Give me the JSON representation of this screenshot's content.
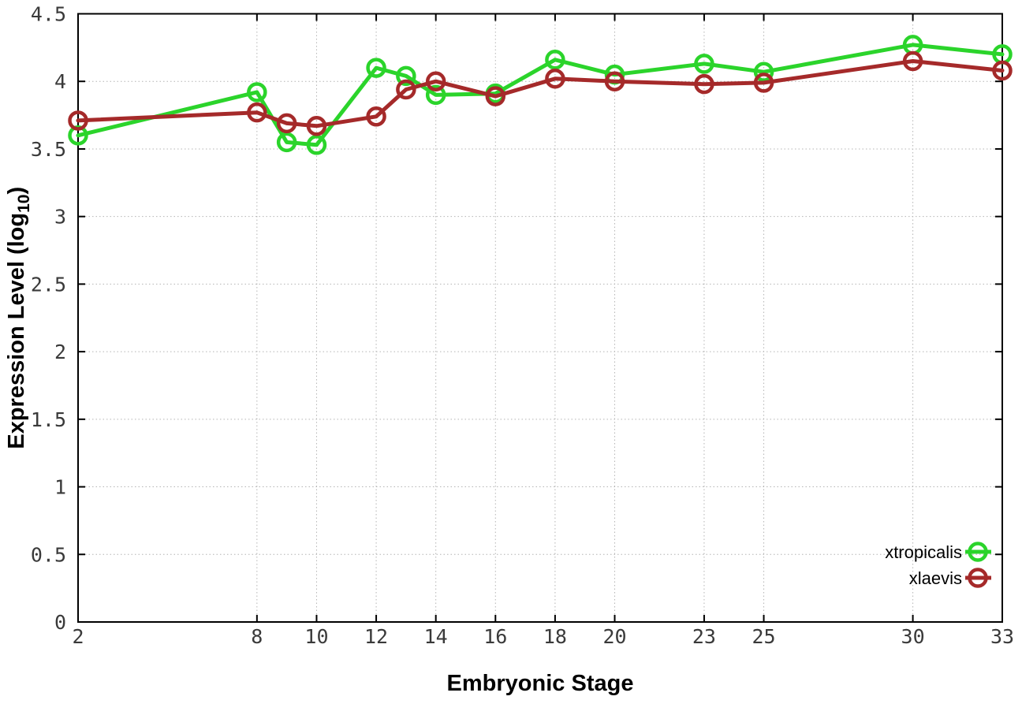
{
  "page": {
    "background": "#ffffff"
  },
  "chart_data": {
    "type": "line",
    "title": "",
    "xlabel": "Embryonic Stage",
    "ylabel": {
      "prefix": "Expression Level (log",
      "subscript": "10",
      "suffix": ")"
    },
    "xlim": [
      2,
      33
    ],
    "ylim": [
      0,
      4.5
    ],
    "x_ticks": [
      2,
      8,
      10,
      12,
      14,
      16,
      18,
      20,
      23,
      25,
      30,
      33
    ],
    "y_ticks": [
      0,
      0.5,
      1,
      1.5,
      2,
      2.5,
      3,
      3.5,
      4,
      4.5
    ],
    "grid": true,
    "legend_position": "inside-right-bottom",
    "x": [
      2,
      8,
      9,
      10,
      12,
      13,
      14,
      16,
      18,
      20,
      23,
      25,
      30,
      33
    ],
    "series": [
      {
        "name": "xtropicalis",
        "color": "#2bd42b",
        "marker": "open-circle",
        "values": [
          3.6,
          3.92,
          3.55,
          3.53,
          4.1,
          4.04,
          3.9,
          3.91,
          4.16,
          4.05,
          4.13,
          4.07,
          4.27,
          4.2
        ]
      },
      {
        "name": "xlaevis",
        "color": "#a52a2a",
        "marker": "open-circle",
        "values": [
          3.71,
          3.77,
          3.69,
          3.67,
          3.74,
          3.94,
          4.0,
          3.89,
          4.02,
          4.0,
          3.98,
          3.99,
          4.15,
          4.08
        ]
      }
    ]
  },
  "style": {
    "axis_color": "#000000",
    "grid_color": "#b4b4b4",
    "text_color": "#000000",
    "tick_label_color": "#3a3a3a"
  }
}
